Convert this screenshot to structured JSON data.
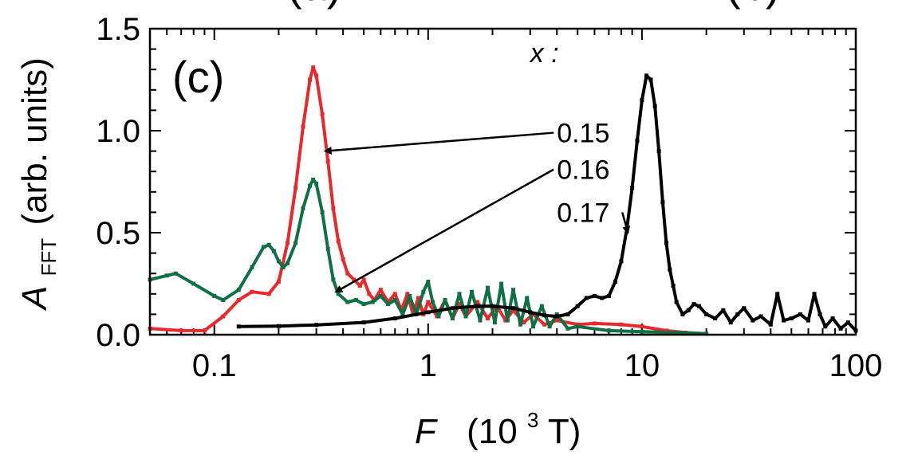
{
  "chart_data": {
    "type": "line",
    "panel_label": "(c)",
    "top_fragment_left": "(a)",
    "top_fragment_right": "(b)",
    "legend_title": "x :",
    "xlabel": {
      "main": "F",
      "unit_open": "(10",
      "unit_exp": "3",
      "unit_close": " T)"
    },
    "ylabel": {
      "main": "A",
      "sub": "FFT",
      "rest": "(arb. units)"
    },
    "xscale": "log",
    "xlim": [
      0.05,
      100
    ],
    "ylim": [
      0,
      1.5
    ],
    "x_ticks": [
      {
        "value": 0.1,
        "label": "0.1"
      },
      {
        "value": 1,
        "label": "1"
      },
      {
        "value": 10,
        "label": "10"
      },
      {
        "value": 100,
        "label": "100"
      }
    ],
    "y_ticks": [
      {
        "value": 0.0,
        "label": "0.0"
      },
      {
        "value": 0.5,
        "label": "0.5"
      },
      {
        "value": 1.0,
        "label": "1.0"
      },
      {
        "value": 1.5,
        "label": "1.5"
      }
    ],
    "series": [
      {
        "name": "0.15",
        "color": "#e8282c",
        "points": [
          [
            0.05,
            0.03
          ],
          [
            0.07,
            0.02
          ],
          [
            0.09,
            0.02
          ],
          [
            0.11,
            0.09
          ],
          [
            0.13,
            0.17
          ],
          [
            0.15,
            0.21
          ],
          [
            0.18,
            0.2
          ],
          [
            0.2,
            0.26
          ],
          [
            0.22,
            0.45
          ],
          [
            0.24,
            0.72
          ],
          [
            0.26,
            1.02
          ],
          [
            0.28,
            1.25
          ],
          [
            0.29,
            1.31
          ],
          [
            0.3,
            1.27
          ],
          [
            0.32,
            1.08
          ],
          [
            0.34,
            0.85
          ],
          [
            0.36,
            0.62
          ],
          [
            0.38,
            0.46
          ],
          [
            0.4,
            0.37
          ],
          [
            0.42,
            0.3
          ],
          [
            0.45,
            0.27
          ],
          [
            0.48,
            0.24
          ],
          [
            0.5,
            0.27
          ],
          [
            0.53,
            0.2
          ],
          [
            0.56,
            0.17
          ],
          [
            0.6,
            0.22
          ],
          [
            0.65,
            0.16
          ],
          [
            0.7,
            0.2
          ],
          [
            0.75,
            0.12
          ],
          [
            0.8,
            0.2
          ],
          [
            0.85,
            0.1
          ],
          [
            0.9,
            0.18
          ],
          [
            0.95,
            0.1
          ],
          [
            1.0,
            0.16
          ],
          [
            1.1,
            0.09
          ],
          [
            1.2,
            0.17
          ],
          [
            1.3,
            0.08
          ],
          [
            1.4,
            0.15
          ],
          [
            1.5,
            0.09
          ],
          [
            1.7,
            0.16
          ],
          [
            1.9,
            0.08
          ],
          [
            2.1,
            0.14
          ],
          [
            2.3,
            0.07
          ],
          [
            2.5,
            0.12
          ],
          [
            2.8,
            0.06
          ],
          [
            3.1,
            0.1
          ],
          [
            3.5,
            0.05
          ],
          [
            4.0,
            0.07
          ],
          [
            5.0,
            0.05
          ],
          [
            6.0,
            0.055
          ],
          [
            8.0,
            0.05
          ],
          [
            10.0,
            0.04
          ],
          [
            13.0,
            0.02
          ],
          [
            16.0,
            0.01
          ],
          [
            20.0,
            0.005
          ]
        ]
      },
      {
        "name": "0.16",
        "color": "#0e7044",
        "points": [
          [
            0.05,
            0.27
          ],
          [
            0.06,
            0.29
          ],
          [
            0.066,
            0.3
          ],
          [
            0.08,
            0.25
          ],
          [
            0.1,
            0.19
          ],
          [
            0.11,
            0.17
          ],
          [
            0.13,
            0.22
          ],
          [
            0.15,
            0.33
          ],
          [
            0.17,
            0.43
          ],
          [
            0.18,
            0.44
          ],
          [
            0.19,
            0.41
          ],
          [
            0.2,
            0.36
          ],
          [
            0.21,
            0.33
          ],
          [
            0.22,
            0.35
          ],
          [
            0.24,
            0.45
          ],
          [
            0.26,
            0.62
          ],
          [
            0.28,
            0.73
          ],
          [
            0.29,
            0.76
          ],
          [
            0.3,
            0.74
          ],
          [
            0.32,
            0.6
          ],
          [
            0.34,
            0.42
          ],
          [
            0.36,
            0.27
          ],
          [
            0.38,
            0.2
          ],
          [
            0.42,
            0.16
          ],
          [
            0.46,
            0.17
          ],
          [
            0.5,
            0.15
          ],
          [
            0.55,
            0.16
          ],
          [
            0.6,
            0.19
          ],
          [
            0.65,
            0.15
          ],
          [
            0.7,
            0.17
          ],
          [
            0.76,
            0.1
          ],
          [
            0.82,
            0.19
          ],
          [
            0.88,
            0.1
          ],
          [
            0.95,
            0.21
          ],
          [
            1.0,
            0.26
          ],
          [
            1.05,
            0.16
          ],
          [
            1.12,
            0.09
          ],
          [
            1.2,
            0.17
          ],
          [
            1.3,
            0.08
          ],
          [
            1.4,
            0.2
          ],
          [
            1.5,
            0.09
          ],
          [
            1.6,
            0.21
          ],
          [
            1.75,
            0.07
          ],
          [
            1.9,
            0.23
          ],
          [
            2.05,
            0.06
          ],
          [
            2.2,
            0.25
          ],
          [
            2.35,
            0.07
          ],
          [
            2.5,
            0.22
          ],
          [
            2.7,
            0.05
          ],
          [
            2.9,
            0.18
          ],
          [
            3.1,
            0.04
          ],
          [
            3.4,
            0.14
          ],
          [
            3.7,
            0.04
          ],
          [
            4.0,
            0.1
          ],
          [
            4.5,
            0.03
          ],
          [
            5.0,
            0.04
          ],
          [
            7.0,
            0.02
          ],
          [
            10.0,
            0.015
          ],
          [
            15.0,
            0.01
          ],
          [
            20.0,
            0.005
          ]
        ]
      },
      {
        "name": "0.17",
        "color": "#000000",
        "points": [
          [
            0.13,
            0.04
          ],
          [
            0.2,
            0.042
          ],
          [
            0.3,
            0.048
          ],
          [
            0.5,
            0.06
          ],
          [
            0.7,
            0.08
          ],
          [
            1.0,
            0.11
          ],
          [
            1.3,
            0.13
          ],
          [
            1.7,
            0.14
          ],
          [
            2.0,
            0.14
          ],
          [
            2.5,
            0.13
          ],
          [
            3.0,
            0.11
          ],
          [
            3.5,
            0.095
          ],
          [
            4.0,
            0.09
          ],
          [
            4.5,
            0.1
          ],
          [
            5.0,
            0.14
          ],
          [
            5.5,
            0.18
          ],
          [
            6.0,
            0.19
          ],
          [
            6.5,
            0.18
          ],
          [
            7.0,
            0.19
          ],
          [
            7.5,
            0.26
          ],
          [
            8.0,
            0.36
          ],
          [
            8.5,
            0.52
          ],
          [
            9.0,
            0.72
          ],
          [
            9.5,
            0.95
          ],
          [
            10.0,
            1.15
          ],
          [
            10.5,
            1.27
          ],
          [
            11.0,
            1.25
          ],
          [
            11.5,
            1.12
          ],
          [
            12.0,
            0.9
          ],
          [
            12.5,
            0.65
          ],
          [
            13.0,
            0.45
          ],
          [
            13.5,
            0.32
          ],
          [
            14.0,
            0.24
          ],
          [
            14.5,
            0.16
          ],
          [
            15.5,
            0.1
          ],
          [
            16.5,
            0.12
          ],
          [
            17.5,
            0.15
          ],
          [
            18.5,
            0.14
          ],
          [
            20.0,
            0.1
          ],
          [
            22.0,
            0.08
          ],
          [
            24.0,
            0.12
          ],
          [
            26.0,
            0.06
          ],
          [
            28.0,
            0.1
          ],
          [
            30.0,
            0.13
          ],
          [
            33.0,
            0.07
          ],
          [
            36.0,
            0.09
          ],
          [
            40.0,
            0.05
          ],
          [
            43.0,
            0.2
          ],
          [
            46.0,
            0.07
          ],
          [
            50.0,
            0.08
          ],
          [
            55.0,
            0.1
          ],
          [
            60.0,
            0.07
          ],
          [
            64.0,
            0.2
          ],
          [
            68.0,
            0.1
          ],
          [
            72.0,
            0.04
          ],
          [
            78.0,
            0.08
          ],
          [
            85.0,
            0.03
          ],
          [
            92.0,
            0.06
          ],
          [
            100.0,
            0.02
          ]
        ]
      }
    ],
    "annotations": [
      {
        "label": "0.15",
        "series": "0.15",
        "text_at": [
          4.0,
          0.99
        ],
        "arrow_to": [
          0.33,
          0.9
        ]
      },
      {
        "label": "0.16",
        "series": "0.16",
        "text_at": [
          4.0,
          0.81
        ],
        "arrow_to": [
          0.37,
          0.21
        ]
      },
      {
        "label": "0.17",
        "series": "0.17",
        "text_at": [
          4.0,
          0.6
        ],
        "arrow_to": [
          8.6,
          0.5
        ]
      }
    ]
  }
}
